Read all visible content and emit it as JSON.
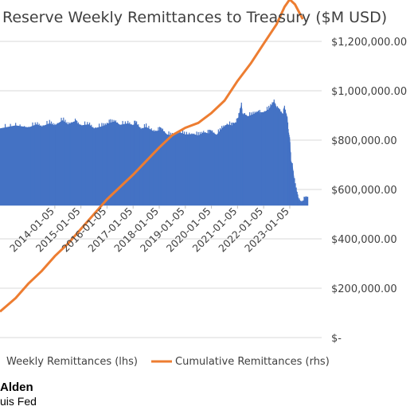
{
  "chart_data": {
    "type": "bar",
    "title": "Reserve Weekly Remittances to Treasury ($M USD)",
    "x_tick_labels": [
      "2014-01-05",
      "2015-01-05",
      "2016-01-05",
      "2017-01-05",
      "2018-01-05",
      "2019-01-05",
      "2020-01-05",
      "2021-01-05",
      "2022-01-05",
      "2023-01-05"
    ],
    "x_tick_dates": [
      2014,
      2015,
      2016,
      2017,
      2018,
      2019,
      2020,
      2021,
      2022,
      2023
    ],
    "x_range": [
      2011.9,
      2024.1
    ],
    "rhs_axis": {
      "tick_labels": [
        "$-",
        "$200,000.00",
        "$400,000.00",
        "$600,000.00",
        "$800,000.00",
        "$1,000,000.00",
        "$1,200,000.00"
      ],
      "tick_values": [
        0,
        200000,
        400000,
        600000,
        800000,
        1000000,
        1200000
      ],
      "range": [
        0,
        1200000
      ]
    },
    "grid": true,
    "legend_position": "bottom",
    "series": [
      {
        "name": "Weekly Remittances (lhs)",
        "axis": "lhs",
        "color": "#4472C4",
        "type": "area",
        "x": [
          2011.9,
          2012.5,
          2013.0,
          2013.3,
          2013.5,
          2013.8,
          2014.0,
          2014.3,
          2014.5,
          2014.75,
          2014.85,
          2015.0,
          2015.3,
          2015.5,
          2015.8,
          2016.0,
          2016.1,
          2016.3,
          2016.5,
          2016.8,
          2017.0,
          2017.1,
          2017.3,
          2017.5,
          2017.8,
          2018.0,
          2018.1,
          2018.3,
          2018.5,
          2018.8,
          2019.0,
          2019.3,
          2019.5,
          2019.7,
          2019.9,
          2020.0,
          2020.2,
          2020.4,
          2020.6,
          2020.8,
          2020.9,
          2021.0,
          2021.15,
          2021.2,
          2021.25,
          2021.4,
          2021.6,
          2021.8,
          2021.9,
          2022.0,
          2022.2,
          2022.4,
          2022.55,
          2022.6,
          2022.75,
          2022.8,
          2022.9,
          2022.95,
          2023.0,
          2023.05,
          2023.1,
          2023.2,
          2023.3,
          2023.35,
          2023.4,
          2023.5,
          2023.6,
          2023.7
        ],
        "values": [
          760000,
          790000,
          770000,
          800000,
          780000,
          810000,
          790000,
          840000,
          800000,
          830000,
          810000,
          790000,
          800000,
          760000,
          780000,
          800000,
          815000,
          830000,
          795000,
          810000,
          790000,
          815000,
          755000,
          775000,
          730000,
          740000,
          750000,
          700000,
          690000,
          720000,
          700000,
          705000,
          690000,
          720000,
          710000,
          730000,
          695000,
          760000,
          800000,
          790000,
          810000,
          830000,
          1000000,
          850000,
          900000,
          880000,
          900000,
          930000,
          890000,
          920000,
          950000,
          1030000,
          930000,
          940000,
          900000,
          960000,
          870000,
          700000,
          660000,
          400000,
          400000,
          200000,
          100000,
          40000,
          20000,
          40000,
          60000,
          80000
        ]
      },
      {
        "name": "Cumulative Remittances (rhs)",
        "axis": "rhs",
        "color": "#ED7D31",
        "type": "line",
        "x": [
          2011.9,
          2012.5,
          2013.0,
          2013.5,
          2014.0,
          2014.5,
          2015.0,
          2015.5,
          2016.0,
          2016.5,
          2017.0,
          2017.5,
          2018.0,
          2018.5,
          2019.0,
          2019.5,
          2020.0,
          2020.5,
          2021.0,
          2021.5,
          2022.0,
          2022.5,
          2022.8,
          2023.0,
          2023.2,
          2023.5
        ],
        "values": [
          105000,
          160000,
          220000,
          270000,
          330000,
          380000,
          440000,
          500000,
          560000,
          610000,
          660000,
          715000,
          770000,
          820000,
          850000,
          870000,
          910000,
          960000,
          1040000,
          1110000,
          1190000,
          1270000,
          1340000,
          1370000,
          1350000,
          1290000
        ]
      }
    ],
    "credits": {
      "author": "Alden",
      "source": "uis Fed"
    }
  }
}
